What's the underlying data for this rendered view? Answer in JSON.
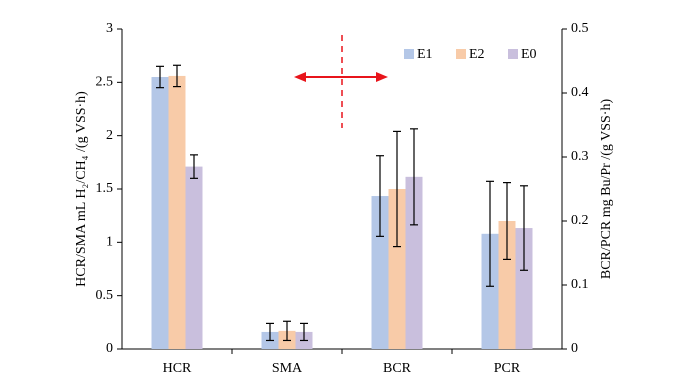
{
  "chart_data": [
    {
      "type": "bar",
      "categories": [
        "HCR",
        "SMA"
      ],
      "ylabel": "HCR/SMA mL H₂/CH₄ /(g VSS·h)",
      "ylim": [
        0,
        3
      ],
      "yticks": [
        0,
        0.5,
        1,
        1.5,
        2,
        2.5,
        3
      ],
      "series": [
        {
          "color": "#b4c7e7",
          "values": [
            2.55,
            0.16
          ],
          "errors": [
            0.1,
            0.08
          ]
        },
        {
          "color": "#f8cba8",
          "values": [
            2.56,
            0.17
          ],
          "errors": [
            0.1,
            0.09
          ]
        },
        {
          "color": "#c9bfdd",
          "values": [
            1.71,
            0.16
          ],
          "errors": [
            0.11,
            0.08
          ]
        }
      ]
    },
    {
      "type": "bar",
      "categories": [
        "BCR",
        "PCR"
      ],
      "ylabel": "BCR/PCR mg Bu/Pr /(g VSS·h)",
      "ylim": [
        0,
        0.5
      ],
      "yticks": [
        0,
        0.1,
        0.2,
        0.3,
        0.4,
        0.5
      ],
      "legend": "upper right",
      "series": [
        {
          "name": "E1",
          "color": "#b4c7e7",
          "values": [
            0.239,
            0.18
          ],
          "errors": [
            0.063,
            0.082
          ]
        },
        {
          "name": "E2",
          "color": "#f8cba8",
          "values": [
            0.25,
            0.2
          ],
          "errors": [
            0.09,
            0.06
          ]
        },
        {
          "name": "E0",
          "color": "#c9bfdd",
          "values": [
            0.269,
            0.189
          ],
          "errors": [
            0.075,
            0.066
          ]
        }
      ]
    }
  ]
}
